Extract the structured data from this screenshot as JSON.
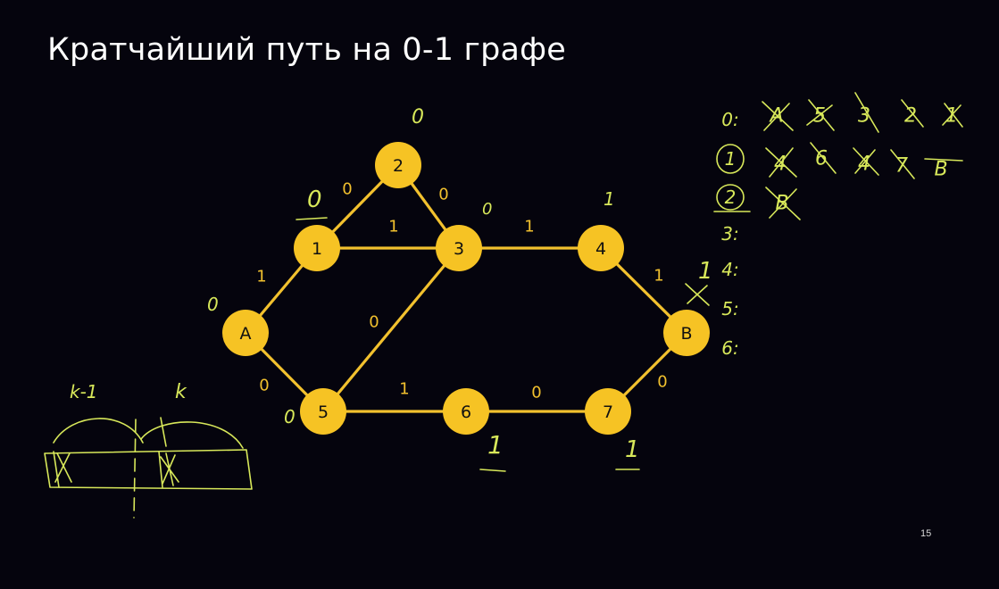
{
  "slide": {
    "title": "Кратчайший путь на 0-1 графе",
    "number": "15"
  },
  "colors": {
    "background": "#05040d",
    "node": "#f6c324",
    "edge": "#f2c12e",
    "annotation_ink": "#d8e85a"
  },
  "graph": {
    "nodes": [
      {
        "id": "A",
        "label": "A"
      },
      {
        "id": "1",
        "label": "1"
      },
      {
        "id": "2",
        "label": "2"
      },
      {
        "id": "3",
        "label": "3"
      },
      {
        "id": "4",
        "label": "4"
      },
      {
        "id": "5",
        "label": "5"
      },
      {
        "id": "6",
        "label": "6"
      },
      {
        "id": "7",
        "label": "7"
      },
      {
        "id": "B",
        "label": "B"
      }
    ],
    "edges": [
      {
        "from": "A",
        "to": "1",
        "weight": "1"
      },
      {
        "from": "A",
        "to": "5",
        "weight": "0"
      },
      {
        "from": "1",
        "to": "2",
        "weight": "0"
      },
      {
        "from": "1",
        "to": "3",
        "weight": "1"
      },
      {
        "from": "2",
        "to": "3",
        "weight": "0"
      },
      {
        "from": "3",
        "to": "4",
        "weight": "1"
      },
      {
        "from": "3",
        "to": "5",
        "weight": "0"
      },
      {
        "from": "4",
        "to": "B",
        "weight": "1"
      },
      {
        "from": "5",
        "to": "6",
        "weight": "1"
      },
      {
        "from": "6",
        "to": "7",
        "weight": "0"
      },
      {
        "from": "7",
        "to": "B",
        "weight": "0"
      }
    ]
  },
  "handwritten": {
    "node_distances": [
      {
        "node": "A",
        "text": "0"
      },
      {
        "node": "1",
        "text": "0"
      },
      {
        "node": "2",
        "text": "0"
      },
      {
        "node": "3",
        "text": "0"
      },
      {
        "node": "4",
        "text": "1"
      },
      {
        "node": "5",
        "text": "0"
      },
      {
        "node": "6",
        "text": "1"
      },
      {
        "node": "7",
        "text": "1"
      },
      {
        "node": "B",
        "text": "1"
      }
    ],
    "bucket_labels": [
      "0:",
      "1",
      "2",
      "3:",
      "4:",
      "5:",
      "6:"
    ],
    "bucket_0_entries": [
      "A",
      "5",
      "3",
      "2",
      "1"
    ],
    "bucket_1_entries": [
      "4",
      "6",
      "4",
      "7",
      "B"
    ],
    "bucket_2_entries": [
      "B"
    ],
    "sketch_labels": [
      "k-1",
      "k"
    ]
  }
}
